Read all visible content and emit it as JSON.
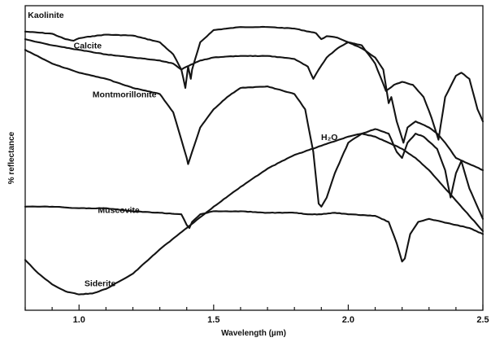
{
  "chart_data": {
    "type": "line",
    "title": "",
    "xlabel": "Wavelength (µm)",
    "ylabel": "% reflectance",
    "xlim": [
      0.8,
      2.5
    ],
    "ylim": [
      0,
      100
    ],
    "x_ticks": [
      {
        "value": 1.0,
        "label": "1.0"
      },
      {
        "value": 1.5,
        "label": "1.5"
      },
      {
        "value": 2.0,
        "label": "2.0"
      },
      {
        "value": 2.5,
        "label": "2.5"
      }
    ],
    "y_ticks_shown": false,
    "grid": false,
    "annotations": [
      {
        "text": "H₂O",
        "x": 1.93,
        "y": 57
      }
    ],
    "series": [
      {
        "name": "Kaolinite",
        "label_at": {
          "x": 0.81,
          "y": 97
        },
        "points": [
          [
            0.8,
            91.5
          ],
          [
            0.9,
            90.8
          ],
          [
            0.95,
            89
          ],
          [
            0.98,
            88.5
          ],
          [
            1.0,
            89.3
          ],
          [
            1.05,
            90
          ],
          [
            1.1,
            90.5
          ],
          [
            1.2,
            90.2
          ],
          [
            1.3,
            88
          ],
          [
            1.35,
            84
          ],
          [
            1.38,
            79
          ],
          [
            1.395,
            73
          ],
          [
            1.405,
            80
          ],
          [
            1.415,
            76
          ],
          [
            1.42,
            79
          ],
          [
            1.45,
            88
          ],
          [
            1.5,
            92
          ],
          [
            1.6,
            93
          ],
          [
            1.7,
            93
          ],
          [
            1.8,
            92.5
          ],
          [
            1.88,
            91
          ],
          [
            1.9,
            89
          ],
          [
            1.92,
            90
          ],
          [
            1.96,
            89.5
          ],
          [
            2.0,
            88
          ],
          [
            2.05,
            86
          ],
          [
            2.1,
            83
          ],
          [
            2.13,
            79
          ],
          [
            2.15,
            68
          ],
          [
            2.16,
            70
          ],
          [
            2.18,
            62
          ],
          [
            2.205,
            55
          ],
          [
            2.22,
            60
          ],
          [
            2.25,
            62
          ],
          [
            2.3,
            60
          ],
          [
            2.33,
            58
          ],
          [
            2.36,
            55
          ],
          [
            2.4,
            50
          ],
          [
            2.45,
            48
          ],
          [
            2.5,
            46
          ]
        ]
      },
      {
        "name": "Calcite",
        "label_at": {
          "x": 0.98,
          "y": 87
        },
        "points": [
          [
            0.8,
            89
          ],
          [
            0.9,
            87
          ],
          [
            1.0,
            85.5
          ],
          [
            1.1,
            84
          ],
          [
            1.2,
            83
          ],
          [
            1.3,
            82
          ],
          [
            1.35,
            81
          ],
          [
            1.38,
            79
          ],
          [
            1.4,
            80
          ],
          [
            1.45,
            82
          ],
          [
            1.5,
            83
          ],
          [
            1.6,
            83.5
          ],
          [
            1.7,
            83.5
          ],
          [
            1.8,
            82.5
          ],
          [
            1.85,
            80
          ],
          [
            1.87,
            76
          ],
          [
            1.89,
            79
          ],
          [
            1.92,
            83
          ],
          [
            1.96,
            86
          ],
          [
            2.0,
            88
          ],
          [
            2.05,
            87
          ],
          [
            2.1,
            81
          ],
          [
            2.14,
            72
          ],
          [
            2.17,
            74
          ],
          [
            2.2,
            75
          ],
          [
            2.24,
            74
          ],
          [
            2.28,
            70
          ],
          [
            2.31,
            63
          ],
          [
            2.335,
            56
          ],
          [
            2.36,
            70
          ],
          [
            2.4,
            77
          ],
          [
            2.42,
            78
          ],
          [
            2.45,
            76
          ],
          [
            2.48,
            66
          ],
          [
            2.5,
            62
          ]
        ]
      },
      {
        "name": "Montmorillonite",
        "label_at": {
          "x": 1.05,
          "y": 71
        },
        "points": [
          [
            0.8,
            85.5
          ],
          [
            0.9,
            81
          ],
          [
            1.0,
            78
          ],
          [
            1.1,
            76
          ],
          [
            1.2,
            73
          ],
          [
            1.3,
            71
          ],
          [
            1.35,
            65
          ],
          [
            1.38,
            56
          ],
          [
            1.4,
            50
          ],
          [
            1.405,
            48
          ],
          [
            1.42,
            52
          ],
          [
            1.45,
            60
          ],
          [
            1.5,
            66
          ],
          [
            1.55,
            70
          ],
          [
            1.6,
            73
          ],
          [
            1.7,
            73.5
          ],
          [
            1.8,
            71
          ],
          [
            1.84,
            66
          ],
          [
            1.87,
            52
          ],
          [
            1.89,
            35
          ],
          [
            1.9,
            34
          ],
          [
            1.92,
            37
          ],
          [
            1.95,
            45
          ],
          [
            2.0,
            55
          ],
          [
            2.05,
            58
          ],
          [
            2.1,
            59.5
          ],
          [
            2.15,
            58
          ],
          [
            2.18,
            52
          ],
          [
            2.2,
            50
          ],
          [
            2.22,
            55
          ],
          [
            2.25,
            58
          ],
          [
            2.28,
            57
          ],
          [
            2.33,
            53
          ],
          [
            2.36,
            46
          ],
          [
            2.38,
            37
          ],
          [
            2.4,
            45
          ],
          [
            2.42,
            49
          ],
          [
            2.45,
            40
          ],
          [
            2.5,
            30
          ]
        ]
      },
      {
        "name": "Muscovite",
        "label_at": {
          "x": 1.07,
          "y": 33
        },
        "points": [
          [
            0.8,
            34
          ],
          [
            0.9,
            34
          ],
          [
            1.0,
            33.5
          ],
          [
            1.1,
            33.5
          ],
          [
            1.2,
            32.5
          ],
          [
            1.3,
            32
          ],
          [
            1.38,
            31.5
          ],
          [
            1.4,
            28
          ],
          [
            1.41,
            27
          ],
          [
            1.42,
            29
          ],
          [
            1.45,
            31.5
          ],
          [
            1.5,
            32.5
          ],
          [
            1.6,
            32.5
          ],
          [
            1.7,
            32
          ],
          [
            1.8,
            32
          ],
          [
            1.85,
            31.5
          ],
          [
            1.9,
            31.5
          ],
          [
            1.95,
            32
          ],
          [
            2.0,
            31.5
          ],
          [
            2.1,
            31
          ],
          [
            2.15,
            29
          ],
          [
            2.18,
            22
          ],
          [
            2.2,
            16
          ],
          [
            2.21,
            17
          ],
          [
            2.23,
            25
          ],
          [
            2.26,
            29
          ],
          [
            2.3,
            30
          ],
          [
            2.35,
            29
          ],
          [
            2.4,
            28
          ],
          [
            2.45,
            27
          ],
          [
            2.5,
            25
          ]
        ]
      },
      {
        "name": "Siderite",
        "label_at": {
          "x": 1.02,
          "y": 9
        },
        "points": [
          [
            0.8,
            16.5
          ],
          [
            0.85,
            12
          ],
          [
            0.9,
            8.5
          ],
          [
            0.95,
            6.2
          ],
          [
            1.0,
            5.2
          ],
          [
            1.05,
            5.5
          ],
          [
            1.1,
            7
          ],
          [
            1.2,
            12
          ],
          [
            1.3,
            20
          ],
          [
            1.4,
            27
          ],
          [
            1.5,
            34
          ],
          [
            1.6,
            40.5
          ],
          [
            1.7,
            46.5
          ],
          [
            1.8,
            51
          ],
          [
            1.9,
            54
          ],
          [
            2.0,
            57
          ],
          [
            2.05,
            58
          ],
          [
            2.1,
            57
          ],
          [
            2.15,
            55
          ],
          [
            2.2,
            53
          ],
          [
            2.25,
            50
          ],
          [
            2.3,
            46
          ],
          [
            2.35,
            41
          ],
          [
            2.4,
            36
          ],
          [
            2.45,
            31
          ],
          [
            2.5,
            26
          ]
        ]
      }
    ]
  }
}
